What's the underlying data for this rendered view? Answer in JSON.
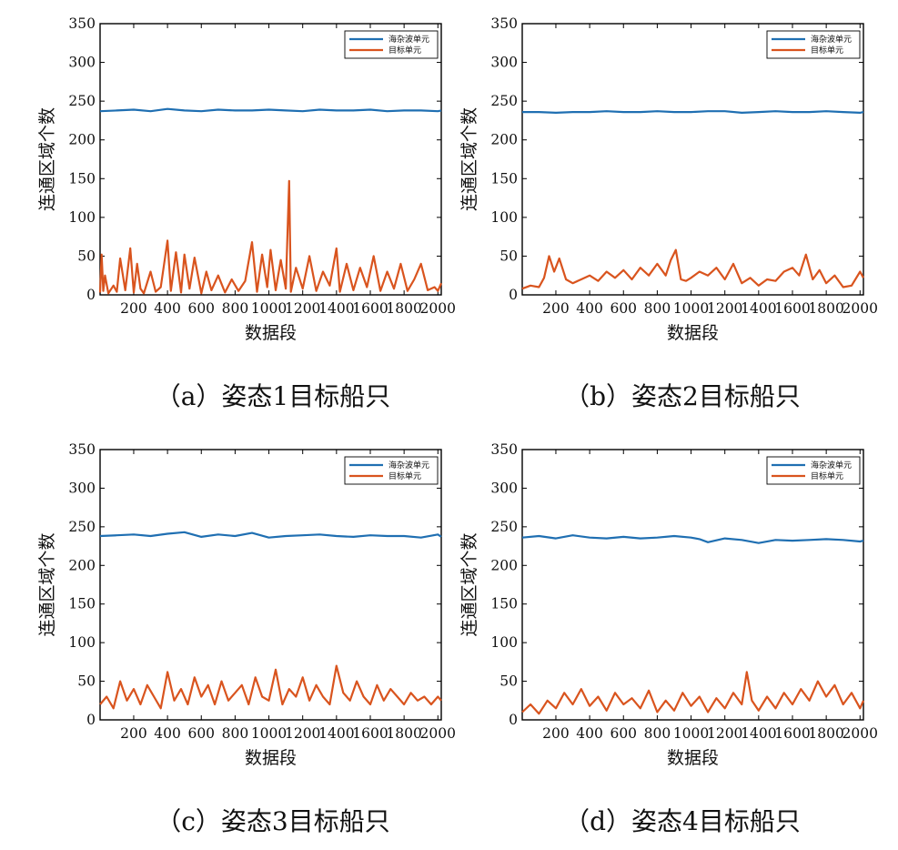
{
  "colors": {
    "sea": "#1f6fb2",
    "target": "#d9541e",
    "axis": "#000000"
  },
  "chart_data": [
    {
      "type": "line",
      "caption": "（a）姿态1目标船只",
      "xlabel": "数据段",
      "ylabel": "连通区域个数",
      "xlim": [
        1,
        2020
      ],
      "ylim": [
        0,
        350
      ],
      "xticks": [
        200,
        400,
        600,
        800,
        1000,
        1200,
        1400,
        1600,
        1800,
        2000
      ],
      "xtick_labels": [
        "200",
        "400",
        "600",
        "800",
        "1000",
        "1200",
        "1400",
        "1600",
        "1800",
        "2000"
      ],
      "yticks": [
        0,
        50,
        100,
        150,
        200,
        250,
        300,
        350
      ],
      "ytick_labels": [
        "0",
        "50",
        "100",
        "150",
        "200",
        "250",
        "300",
        "350"
      ],
      "legend": "top-right",
      "grid": false,
      "series": [
        {
          "name": "海杂波单元",
          "color_key": "sea",
          "x": [
            1,
            100,
            200,
            300,
            400,
            500,
            600,
            700,
            800,
            900,
            1000,
            1100,
            1200,
            1300,
            1400,
            1500,
            1600,
            1700,
            1800,
            1900,
            2000,
            2020
          ],
          "values": [
            237,
            238,
            239,
            237,
            240,
            238,
            237,
            239,
            238,
            238,
            239,
            238,
            237,
            239,
            238,
            238,
            239,
            237,
            238,
            238,
            237,
            238
          ]
        },
        {
          "name": "目标单元",
          "color_key": "target",
          "x": [
            1,
            10,
            20,
            30,
            50,
            80,
            100,
            120,
            150,
            180,
            200,
            220,
            240,
            260,
            300,
            330,
            360,
            400,
            420,
            450,
            480,
            500,
            530,
            560,
            600,
            630,
            660,
            700,
            740,
            780,
            820,
            860,
            900,
            930,
            960,
            990,
            1010,
            1040,
            1070,
            1100,
            1120,
            1130,
            1160,
            1200,
            1240,
            1280,
            1320,
            1360,
            1400,
            1420,
            1460,
            1500,
            1540,
            1580,
            1620,
            1660,
            1700,
            1740,
            1780,
            1820,
            1860,
            1900,
            1940,
            1980,
            2000,
            2020
          ],
          "values": [
            3,
            52,
            5,
            25,
            2,
            12,
            4,
            47,
            6,
            60,
            3,
            40,
            8,
            2,
            30,
            4,
            10,
            70,
            5,
            55,
            3,
            52,
            8,
            48,
            2,
            30,
            6,
            25,
            3,
            20,
            5,
            18,
            68,
            4,
            52,
            10,
            58,
            6,
            45,
            8,
            147,
            4,
            35,
            8,
            50,
            5,
            30,
            12,
            60,
            4,
            40,
            6,
            35,
            10,
            50,
            5,
            30,
            8,
            40,
            5,
            20,
            40,
            6,
            10,
            5,
            15
          ]
        }
      ]
    },
    {
      "type": "line",
      "caption": "（b）姿态2目标船只",
      "xlabel": "数据段",
      "ylabel": "连通区域个数",
      "xlim": [
        1,
        2020
      ],
      "ylim": [
        0,
        350
      ],
      "xticks": [
        200,
        400,
        600,
        800,
        1000,
        1200,
        1400,
        1600,
        1800,
        2000
      ],
      "xtick_labels": [
        "200",
        "400",
        "600",
        "800",
        "1000",
        "1200",
        "1400",
        "1600",
        "1800",
        "2000"
      ],
      "yticks": [
        0,
        50,
        100,
        150,
        200,
        250,
        300,
        350
      ],
      "ytick_labels": [
        "0",
        "50",
        "100",
        "150",
        "200",
        "250",
        "300",
        "350"
      ],
      "legend": "top-right",
      "grid": false,
      "series": [
        {
          "name": "海杂波单元",
          "color_key": "sea",
          "x": [
            1,
            100,
            200,
            300,
            400,
            500,
            600,
            700,
            800,
            900,
            1000,
            1100,
            1200,
            1300,
            1400,
            1500,
            1600,
            1700,
            1800,
            1900,
            2000,
            2020
          ],
          "values": [
            236,
            236,
            235,
            236,
            236,
            237,
            236,
            236,
            237,
            236,
            236,
            237,
            237,
            235,
            236,
            237,
            236,
            236,
            237,
            236,
            235,
            236
          ]
        },
        {
          "name": "目标单元",
          "color_key": "target",
          "x": [
            1,
            50,
            100,
            130,
            160,
            190,
            220,
            260,
            300,
            350,
            400,
            450,
            500,
            550,
            600,
            650,
            700,
            750,
            800,
            850,
            880,
            910,
            940,
            970,
            1000,
            1050,
            1100,
            1150,
            1200,
            1250,
            1300,
            1350,
            1400,
            1450,
            1500,
            1550,
            1600,
            1640,
            1680,
            1720,
            1760,
            1800,
            1850,
            1900,
            1950,
            2000,
            2020
          ],
          "values": [
            8,
            12,
            10,
            22,
            50,
            30,
            47,
            20,
            15,
            20,
            25,
            18,
            30,
            22,
            32,
            20,
            35,
            25,
            40,
            25,
            45,
            58,
            20,
            18,
            22,
            30,
            25,
            35,
            20,
            40,
            15,
            22,
            12,
            20,
            18,
            30,
            35,
            25,
            52,
            20,
            32,
            15,
            25,
            10,
            12,
            30,
            22
          ]
        }
      ]
    },
    {
      "type": "line",
      "caption": "（c）姿态3目标船只",
      "xlabel": "数据段",
      "ylabel": "连通区域个数",
      "xlim": [
        1,
        2020
      ],
      "ylim": [
        0,
        350
      ],
      "xticks": [
        200,
        400,
        600,
        800,
        1000,
        1200,
        1400,
        1600,
        1800,
        2000
      ],
      "xtick_labels": [
        "200",
        "400",
        "600",
        "800",
        "1000",
        "1200",
        "1400",
        "1600",
        "1800",
        "2000"
      ],
      "yticks": [
        0,
        50,
        100,
        150,
        200,
        250,
        300,
        350
      ],
      "ytick_labels": [
        "0",
        "50",
        "100",
        "150",
        "200",
        "250",
        "300",
        "350"
      ],
      "legend": "top-right",
      "grid": false,
      "series": [
        {
          "name": "海杂波单元",
          "color_key": "sea",
          "x": [
            1,
            100,
            200,
            300,
            400,
            500,
            600,
            700,
            800,
            900,
            1000,
            1100,
            1200,
            1300,
            1400,
            1500,
            1600,
            1700,
            1800,
            1900,
            2000,
            2020
          ],
          "values": [
            238,
            239,
            240,
            238,
            241,
            243,
            237,
            240,
            238,
            242,
            236,
            238,
            239,
            240,
            238,
            237,
            239,
            238,
            238,
            236,
            240,
            237
          ]
        },
        {
          "name": "目标单元",
          "color_key": "target",
          "x": [
            1,
            40,
            80,
            120,
            160,
            200,
            240,
            280,
            320,
            360,
            400,
            440,
            480,
            520,
            560,
            600,
            640,
            680,
            720,
            760,
            800,
            840,
            880,
            920,
            960,
            1000,
            1040,
            1080,
            1120,
            1160,
            1200,
            1240,
            1280,
            1320,
            1360,
            1400,
            1440,
            1480,
            1520,
            1560,
            1600,
            1640,
            1680,
            1720,
            1760,
            1800,
            1840,
            1880,
            1920,
            1960,
            2000,
            2020
          ],
          "values": [
            20,
            30,
            15,
            50,
            25,
            40,
            20,
            45,
            30,
            15,
            62,
            25,
            40,
            20,
            55,
            30,
            45,
            20,
            50,
            25,
            35,
            45,
            20,
            55,
            30,
            25,
            65,
            20,
            40,
            30,
            55,
            25,
            45,
            30,
            20,
            70,
            35,
            25,
            50,
            30,
            20,
            45,
            25,
            40,
            30,
            20,
            35,
            25,
            30,
            20,
            30,
            25
          ]
        }
      ]
    },
    {
      "type": "line",
      "caption": "（d）姿态4目标船只",
      "xlabel": "数据段",
      "ylabel": "连通区域个数",
      "xlim": [
        1,
        2020
      ],
      "ylim": [
        0,
        350
      ],
      "xticks": [
        200,
        400,
        600,
        800,
        1000,
        1200,
        1400,
        1600,
        1800,
        2000
      ],
      "xtick_labels": [
        "200",
        "400",
        "600",
        "800",
        "1000",
        "1200",
        "1400",
        "1600",
        "1800",
        "2000"
      ],
      "yticks": [
        0,
        50,
        100,
        150,
        200,
        250,
        300,
        350
      ],
      "ytick_labels": [
        "0",
        "50",
        "100",
        "150",
        "200",
        "250",
        "300",
        "350"
      ],
      "legend": "top-right",
      "grid": false,
      "series": [
        {
          "name": "海杂波单元",
          "color_key": "sea",
          "x": [
            1,
            100,
            200,
            300,
            400,
            500,
            600,
            700,
            800,
            900,
            1000,
            1050,
            1100,
            1200,
            1300,
            1400,
            1500,
            1600,
            1700,
            1800,
            1900,
            2000,
            2020
          ],
          "values": [
            236,
            238,
            235,
            239,
            236,
            235,
            237,
            235,
            236,
            238,
            236,
            234,
            230,
            235,
            233,
            229,
            233,
            232,
            233,
            234,
            233,
            231,
            232
          ]
        },
        {
          "name": "目标单元",
          "color_key": "target",
          "x": [
            1,
            50,
            100,
            150,
            200,
            250,
            300,
            350,
            400,
            450,
            500,
            550,
            600,
            650,
            700,
            750,
            800,
            850,
            900,
            950,
            1000,
            1050,
            1100,
            1150,
            1200,
            1250,
            1300,
            1330,
            1360,
            1400,
            1450,
            1500,
            1550,
            1600,
            1650,
            1700,
            1750,
            1800,
            1850,
            1900,
            1950,
            2000,
            2020
          ],
          "values": [
            10,
            20,
            8,
            25,
            15,
            35,
            20,
            40,
            18,
            30,
            12,
            35,
            20,
            28,
            15,
            38,
            10,
            25,
            12,
            35,
            18,
            30,
            10,
            28,
            15,
            35,
            20,
            62,
            25,
            12,
            30,
            15,
            35,
            20,
            40,
            25,
            50,
            30,
            45,
            20,
            35,
            15,
            25
          ]
        }
      ]
    }
  ]
}
